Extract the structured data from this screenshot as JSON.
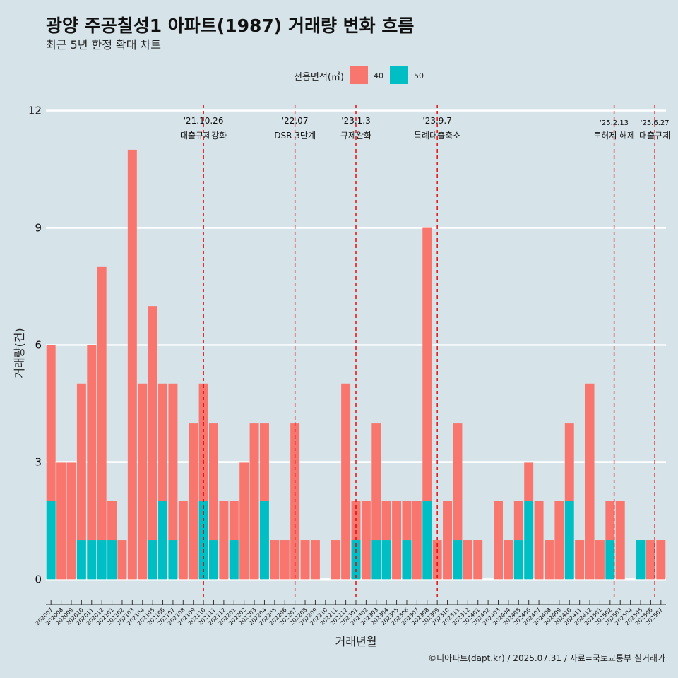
{
  "chart_data": {
    "type": "bar",
    "title": "광양 주공칠성1 아파트(1987) 거래량 변화 흐름",
    "subtitle": "최근 5년 한정 확대 차트",
    "xlabel": "거래년월",
    "ylabel": "거래량(건)",
    "ylim": [
      -0.5,
      12.3
    ],
    "yticks": [
      0,
      3,
      6,
      9,
      12
    ],
    "grid": true,
    "legend": {
      "title": "전용면적(㎡)",
      "position": "top"
    },
    "caption": "©디아파트(dapt.kr) / 2025.07.31 / 자료=국토교통부 실거래가",
    "categories": [
      "202007",
      "202008",
      "202009",
      "202010",
      "202011",
      "202012",
      "202101",
      "202102",
      "202103",
      "202104",
      "202105",
      "202106",
      "202107",
      "202108",
      "202109",
      "202110",
      "202111",
      "202112",
      "202201",
      "202202",
      "202203",
      "202204",
      "202205",
      "202206",
      "202207",
      "202208",
      "202209",
      "202210",
      "202211",
      "202212",
      "202301",
      "202302",
      "202303",
      "202304",
      "202305",
      "202306",
      "202307",
      "202308",
      "202309",
      "202310",
      "202311",
      "202312",
      "202401",
      "202402",
      "202403",
      "202404",
      "202405",
      "202406",
      "202407",
      "202408",
      "202409",
      "202410",
      "202411",
      "202412",
      "202501",
      "202502",
      "202503",
      "202504",
      "202505",
      "202506",
      "202507"
    ],
    "series": [
      {
        "name": "40",
        "color": "#f8766d",
        "values": [
          4,
          3,
          3,
          4,
          5,
          7,
          1,
          1,
          11,
          5,
          6,
          3,
          4,
          2,
          4,
          3,
          3,
          2,
          1,
          3,
          4,
          2,
          1,
          1,
          4,
          1,
          1,
          0,
          1,
          5,
          1,
          2,
          3,
          1,
          2,
          1,
          2,
          7,
          1,
          2,
          3,
          1,
          1,
          0,
          2,
          1,
          1,
          1,
          2,
          1,
          2,
          2,
          1,
          5,
          1,
          1,
          2,
          0,
          0,
          1,
          1
        ]
      },
      {
        "name": "50",
        "color": "#00bfc4",
        "values": [
          2,
          0,
          0,
          1,
          1,
          1,
          1,
          0,
          0,
          0,
          1,
          2,
          1,
          0,
          0,
          2,
          1,
          0,
          1,
          0,
          0,
          2,
          0,
          0,
          0,
          0,
          0,
          0,
          0,
          0,
          1,
          0,
          1,
          1,
          0,
          1,
          0,
          2,
          0,
          0,
          1,
          0,
          0,
          0,
          0,
          0,
          1,
          2,
          0,
          0,
          0,
          2,
          0,
          0,
          0,
          1,
          0,
          0,
          1,
          0,
          0
        ]
      }
    ],
    "annotations": [
      {
        "at": 15.0,
        "date": "'21.10.26",
        "label": "대출규제강화"
      },
      {
        "at": 24.0,
        "date": "'22.07",
        "label": "DSR 3단계"
      },
      {
        "at": 30.0,
        "date": "'23.1.3",
        "label": "규제완화"
      },
      {
        "at": 38.0,
        "date": "'23.9.7",
        "label": "특례대출축소"
      },
      {
        "at": 55.4,
        "date": "'25.2.13",
        "label": "토허제 해제"
      },
      {
        "at": 59.4,
        "date": "'25.6.27",
        "label": "대출규제"
      }
    ]
  }
}
